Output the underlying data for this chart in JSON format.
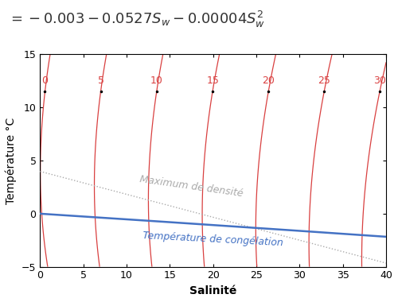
{
  "xlabel": "Salinité",
  "ylabel": "Température °C",
  "xlim": [
    0,
    40
  ],
  "ylim": [
    -5,
    15
  ],
  "xticks": [
    0,
    5,
    10,
    15,
    20,
    25,
    30,
    35,
    40
  ],
  "yticks": [
    -5,
    0,
    5,
    10,
    15
  ],
  "contour_labels": [
    0,
    5,
    10,
    15,
    20,
    25,
    30
  ],
  "contour_color": "#d94040",
  "blue_line_color": "#4472C4",
  "gray_line_color": "#aaaaaa",
  "label_max_densite": "Maximum de densité",
  "label_congelation": "Température de congélation",
  "background_color": "#ffffff",
  "formula_fontsize": 13,
  "axis_fontsize": 10,
  "tick_fontsize": 9,
  "contour_label_fontsize": 9,
  "line_label_fontsize": 9
}
